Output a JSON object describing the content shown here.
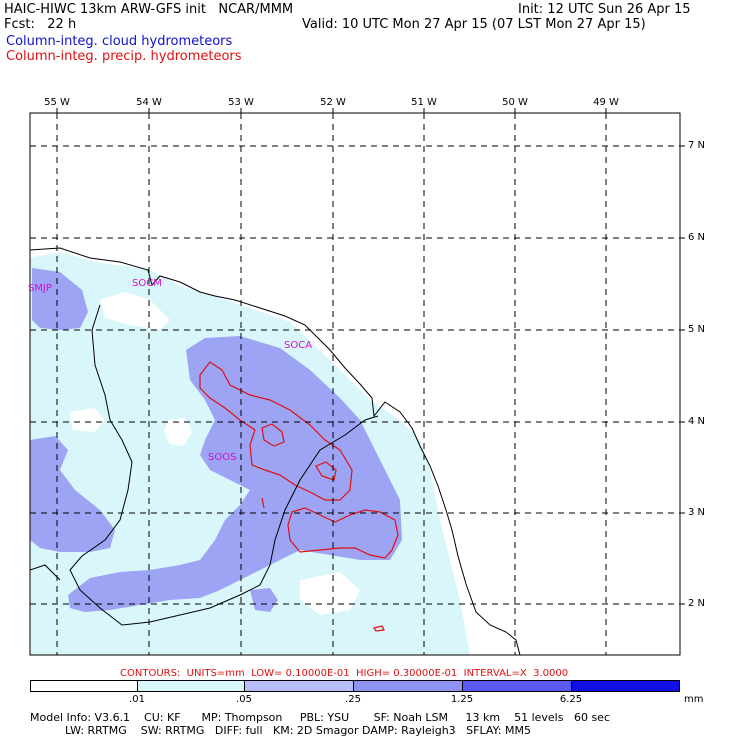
{
  "header": {
    "title": "HAIC-HIWC 13km ARW-GFS init   NCAR/MMM",
    "init": "Init: 12 UTC Sun 26 Apr 15",
    "fcst": "Fcst:   22 h",
    "valid": "Valid: 10 UTC Mon 27 Apr 15 (07 LST Mon 27 Apr 15)",
    "field1": "Column-integ. cloud hydrometeors",
    "field2": "Column-integ. precip. hydrometeors"
  },
  "map": {
    "lon_labels": [
      "55 W",
      "54 W",
      "53 W",
      "52 W",
      "51 W",
      "50 W",
      "49 W"
    ],
    "lat_labels": [
      "7 N",
      "6 N",
      "5 N",
      "4 N",
      "3 N",
      "2 N"
    ],
    "stations": [
      {
        "id": "SMJP",
        "lon": -55.3,
        "lat": 5.45
      },
      {
        "id": "SOCM",
        "lon": -54.15,
        "lat": 5.5
      },
      {
        "id": "SOCA",
        "lon": -52.35,
        "lat": 4.85
      },
      {
        "id": "SOOS",
        "lon": -53.15,
        "lat": 3.65
      }
    ],
    "colors": {
      "land_bg": "#ffffff",
      "shade1": "#d9f6fb",
      "shade2": "#9da4f3",
      "precip_contour": "#e01010",
      "coast": "#000000",
      "station": "#d010d0"
    }
  },
  "contours_line": "CONTOURS:  UNITS=mm  LOW= 0.10000E-01  HIGH= 0.30000E-01  INTERVAL=X  3.0000",
  "colorbar": {
    "labels": [
      ".01",
      ".05",
      ".25",
      "1.25",
      "6.25"
    ],
    "unit": "mm",
    "colors": [
      "#ffffff",
      "#d9f6fb",
      "#b7bdf7",
      "#8e93f3",
      "#5a5af0",
      "#1010e6"
    ]
  },
  "model_info": {
    "line1": "Model Info: V3.6.1    CU: KF      MP: Thompson     PBL: YSU       SF: Noah LSM     13 km    51 levels   60 sec",
    "line2": "          LW: RRTMG    SW: RRTMG   DIFF: full   KM: 2D Smagor DAMP: Rayleigh3   SFLAY: MM5"
  }
}
